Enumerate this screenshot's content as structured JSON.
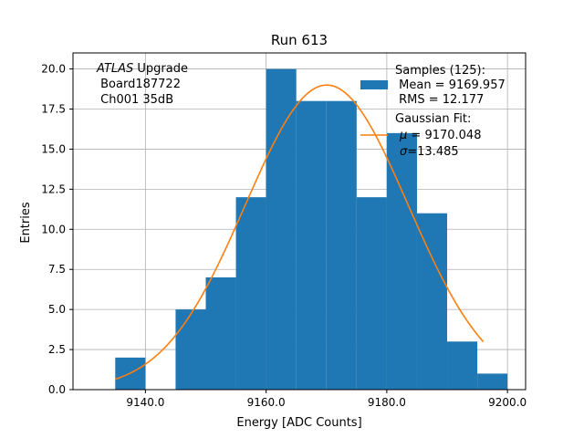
{
  "chart_data": {
    "type": "bar",
    "title": "Run 613",
    "xlabel": "Energy [ADC Counts]",
    "ylabel": "Entries",
    "xlim": [
      9128,
      9203
    ],
    "ylim": [
      0,
      21
    ],
    "grid": true,
    "x_ticks": [
      9140,
      9160,
      9180,
      9200
    ],
    "x_tick_labels": [
      "9140.0",
      "9160.0",
      "9180.0",
      "9200.0"
    ],
    "y_ticks": [
      0,
      2.5,
      5,
      7.5,
      10,
      12.5,
      15,
      17.5,
      20
    ],
    "y_tick_labels": [
      "0.0",
      "2.5",
      "5.0",
      "7.5",
      "10.0",
      "12.5",
      "15.0",
      "17.5",
      "20.0"
    ],
    "bin_edges": [
      9135,
      9140,
      9145,
      9150,
      9155,
      9160,
      9165,
      9170,
      9175,
      9180,
      9185,
      9190,
      9195,
      9200
    ],
    "values": [
      2,
      0,
      5,
      7,
      12,
      20,
      18,
      18,
      12,
      16,
      11,
      3,
      1
    ],
    "bar_color": "#1f77b4",
    "fit": {
      "type": "gaussian",
      "amplitude": 19.0,
      "mu": 9170.048,
      "sigma": 13.485,
      "x_range": [
        9135,
        9196
      ],
      "color": "#ff7f0e"
    },
    "annotation": {
      "italic": "ATLAS",
      "rest": " Upgrade",
      "line2": " Board187722",
      "line3": " Ch001 35dB"
    },
    "legend": {
      "position": "top-right",
      "samples_line1": "Samples (125):",
      "samples_line2": " Mean = 9169.957",
      "samples_line3": " RMS = 12.177",
      "fit_line1": "Gaussian Fit:",
      "fit_mu_symbol": "μ",
      "fit_line2": " = 9170.048",
      "fit_sigma_symbol": "σ",
      "fit_line3": "=13.485"
    }
  }
}
